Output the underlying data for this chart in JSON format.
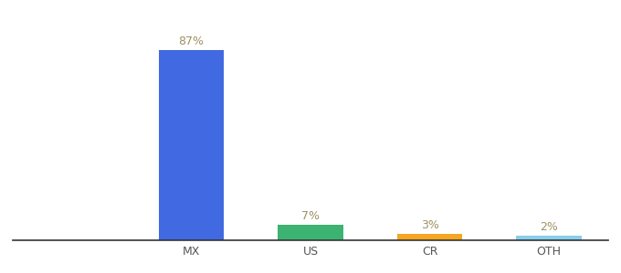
{
  "categories": [
    "MX",
    "US",
    "CR",
    "OTH"
  ],
  "values": [
    87,
    7,
    3,
    2
  ],
  "bar_colors": [
    "#4169e1",
    "#3cb371",
    "#f5a623",
    "#87ceeb"
  ],
  "label_color": "#a09060",
  "value_labels": [
    "87%",
    "7%",
    "3%",
    "2%"
  ],
  "ylim": [
    0,
    100
  ],
  "background_color": "#ffffff",
  "bar_width": 0.55,
  "label_fontsize": 9,
  "tick_fontsize": 9
}
